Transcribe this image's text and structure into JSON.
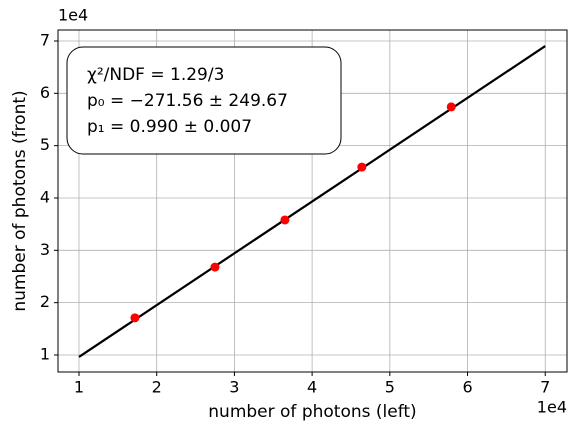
{
  "chart_data": {
    "type": "scatter",
    "xlabel": "number of photons (left)",
    "ylabel": "number of photons (front)",
    "x_offset_label": "1e4",
    "y_offset_label": "1e4",
    "xlim": [
      0.73,
      7.28
    ],
    "ylim": [
      0.675,
      7.21
    ],
    "xticks": [
      1,
      2,
      3,
      4,
      5,
      6,
      7
    ],
    "yticks": [
      1,
      2,
      3,
      4,
      5,
      6,
      7
    ],
    "grid": true,
    "series": [
      {
        "color": "#ff0000",
        "marker": "dot",
        "x": [
          1.72,
          2.75,
          3.65,
          4.64,
          5.79
        ],
        "values": [
          1.71,
          2.68,
          3.58,
          4.59,
          5.74
        ]
      },
      {
        "color": "#000000",
        "marker": "line",
        "x": [
          1,
          7
        ],
        "values": [
          0.963,
          6.903
        ]
      }
    ],
    "annotation": [
      "χ²/NDF = 1.29/3",
      "p₀ = −271.56 ± 249.67",
      "p₁ = 0.990 ± 0.007"
    ]
  }
}
